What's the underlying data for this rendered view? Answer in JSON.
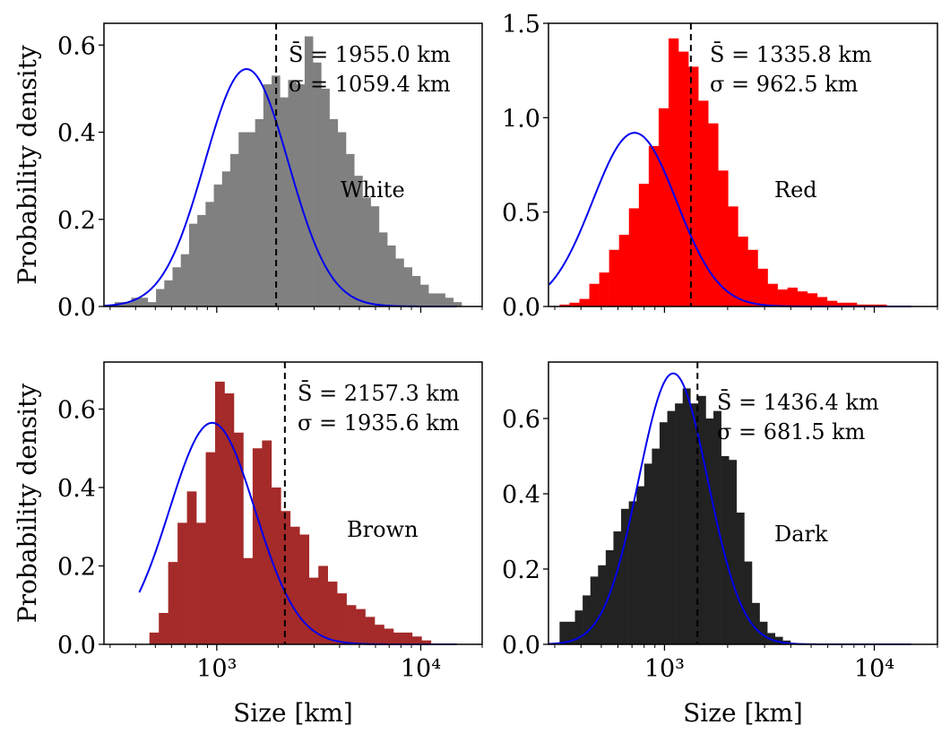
{
  "chart_data": [
    {
      "type": "bar",
      "label": "White",
      "color": "#808080",
      "curve_color": "#0000ee",
      "mean_text": "S̄ = 1955.0 km",
      "sigma_text": "σ = 1059.4 km",
      "mean_value": 1955.0,
      "ylabel": "Probability density",
      "xlabel": "",
      "xscale": "log",
      "xlim": [
        280,
        20000
      ],
      "ylim": [
        0,
        0.65
      ],
      "yticks": [
        0.0,
        0.2,
        0.4,
        0.6
      ],
      "ytick_labels": [
        "0.0",
        "0.2",
        "0.4",
        "0.6"
      ],
      "xticks": [
        1000,
        10000
      ],
      "xtick_labels": [],
      "bins_log10": [
        2.5,
        4.2
      ],
      "hist": [
        0.01,
        0.01,
        0.02,
        0.02,
        0.01,
        0.04,
        0.06,
        0.09,
        0.12,
        0.19,
        0.21,
        0.24,
        0.28,
        0.31,
        0.35,
        0.4,
        0.4,
        0.43,
        0.51,
        0.53,
        0.48,
        0.52,
        0.51,
        0.62,
        0.56,
        0.5,
        0.43,
        0.4,
        0.35,
        0.3,
        0.25,
        0.23,
        0.17,
        0.14,
        0.11,
        0.09,
        0.07,
        0.05,
        0.03,
        0.03,
        0.02,
        0.01
      ],
      "curve": {
        "type": "lognormal",
        "peak_x": 1400,
        "peak_y": 0.545,
        "sigma_log10": 0.205
      }
    },
    {
      "type": "bar",
      "label": "Red",
      "color": "#ff0000",
      "curve_color": "#0000ee",
      "mean_text": "S̄ = 1335.8 km",
      "sigma_text": "σ = 962.5 km",
      "mean_value": 1335.8,
      "ylabel": "",
      "xlabel": "",
      "xscale": "log",
      "xlim": [
        280,
        20000
      ],
      "ylim": [
        0,
        1.5
      ],
      "yticks": [
        0.0,
        0.5,
        1.0,
        1.5
      ],
      "ytick_labels": [
        "0.0",
        "0.5",
        "1.0",
        "1.5"
      ],
      "xticks": [
        1000,
        10000
      ],
      "xtick_labels": [],
      "bins_log10": [
        2.5,
        4.2
      ],
      "hist": [
        0.01,
        0.02,
        0.04,
        0.12,
        0.18,
        0.3,
        0.38,
        0.52,
        0.65,
        0.85,
        1.05,
        1.42,
        1.35,
        1.27,
        1.09,
        0.97,
        0.72,
        0.53,
        0.37,
        0.3,
        0.2,
        0.12,
        0.09,
        0.1,
        0.08,
        0.07,
        0.05,
        0.03,
        0.02,
        0.02,
        0.01,
        0.01,
        0.01,
        0.0,
        0.0,
        0.0
      ],
      "curve": {
        "type": "lognormal",
        "peak_x": 720,
        "peak_y": 0.92,
        "sigma_log10": 0.2
      }
    },
    {
      "type": "bar",
      "label": "Brown",
      "color": "#a52a2a",
      "curve_color": "#0000ee",
      "mean_text": "S̄ = 2157.3 km",
      "sigma_text": "σ = 1935.6 km",
      "mean_value": 2157.3,
      "ylabel": "Probability density",
      "xlabel": "Size [km]",
      "xscale": "log",
      "xlim": [
        280,
        20000
      ],
      "ylim": [
        0,
        0.72
      ],
      "yticks": [
        0.0,
        0.2,
        0.4,
        0.6
      ],
      "ytick_labels": [
        "0.0",
        "0.2",
        "0.4",
        "0.6"
      ],
      "xticks": [
        1000,
        10000
      ],
      "xtick_labels": [
        "10³",
        "10⁴"
      ],
      "bins_log10": [
        2.67,
        4.05
      ],
      "hist": [
        0.03,
        0.08,
        0.21,
        0.31,
        0.39,
        0.31,
        0.49,
        0.67,
        0.64,
        0.54,
        0.22,
        0.5,
        0.52,
        0.4,
        0.34,
        0.3,
        0.28,
        0.17,
        0.2,
        0.16,
        0.13,
        0.1,
        0.09,
        0.07,
        0.05,
        0.04,
        0.03,
        0.03,
        0.02,
        0.01
      ],
      "curve": {
        "type": "lognormal",
        "peak_x": 950,
        "peak_y": 0.565,
        "sigma_log10": 0.21
      }
    },
    {
      "type": "bar",
      "label": "Dark",
      "color": "#222222",
      "curve_color": "#0000ee",
      "mean_text": "S̄ = 1436.4 km",
      "sigma_text": "σ = 681.5 km",
      "mean_value": 1436.4,
      "ylabel": "",
      "xlabel": "Size [km]",
      "xscale": "log",
      "xlim": [
        280,
        20000
      ],
      "ylim": [
        0,
        0.75
      ],
      "yticks": [
        0.0,
        0.2,
        0.4,
        0.6
      ],
      "ytick_labels": [
        "0.0",
        "0.2",
        "0.4",
        "0.6"
      ],
      "xticks": [
        1000,
        10000
      ],
      "xtick_labels": [
        "10³",
        "10⁴"
      ],
      "bins_log10": [
        2.5,
        3.6
      ],
      "hist": [
        0.06,
        0.06,
        0.09,
        0.13,
        0.18,
        0.21,
        0.25,
        0.3,
        0.36,
        0.38,
        0.42,
        0.48,
        0.52,
        0.59,
        0.62,
        0.64,
        0.68,
        0.64,
        0.66,
        0.6,
        0.62,
        0.5,
        0.49,
        0.35,
        0.22,
        0.11,
        0.06,
        0.03,
        0.02,
        0.01
      ],
      "curve": {
        "type": "lognormal",
        "peak_x": 1100,
        "peak_y": 0.72,
        "sigma_log10": 0.165
      }
    }
  ]
}
